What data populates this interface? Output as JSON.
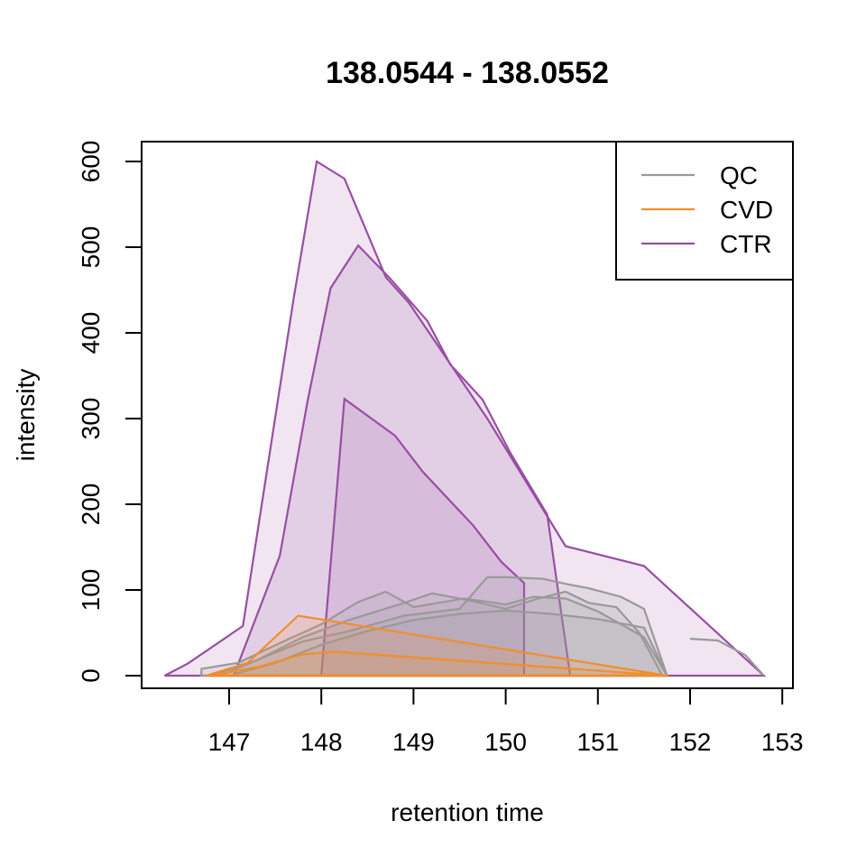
{
  "chart_data": {
    "type": "area",
    "title": "138.0544 - 138.0552",
    "xlabel": "retention time",
    "ylabel": "intensity",
    "xlim": [
      146.3,
      152.9
    ],
    "ylim": [
      0,
      600
    ],
    "x_ticks": [
      147,
      148,
      149,
      150,
      151,
      152,
      153
    ],
    "y_ticks": [
      0,
      100,
      200,
      300,
      400,
      500,
      600
    ],
    "legend": {
      "position": "top-right",
      "entries": [
        {
          "label": "QC",
          "color": "#999999"
        },
        {
          "label": "CVD",
          "color": "#F28E2B"
        },
        {
          "label": "CTR",
          "color": "#984EA3"
        }
      ]
    },
    "series": [
      {
        "name": "CTR",
        "color": "#984EA3",
        "points": [
          [
            146.3,
            0
          ],
          [
            146.55,
            14
          ],
          [
            147.15,
            58
          ],
          [
            147.7,
            440
          ],
          [
            147.95,
            600
          ],
          [
            148.25,
            580
          ],
          [
            148.7,
            465
          ],
          [
            148.95,
            435
          ],
          [
            149.8,
            300
          ],
          [
            150.65,
            151
          ],
          [
            151.5,
            128
          ],
          [
            152.8,
            0
          ]
        ]
      },
      {
        "name": "CTR",
        "color": "#984EA3",
        "points": [
          [
            147.05,
            0
          ],
          [
            147.55,
            140
          ],
          [
            147.85,
            320
          ],
          [
            148.1,
            452
          ],
          [
            148.4,
            502
          ],
          [
            148.75,
            463
          ],
          [
            149.15,
            414
          ],
          [
            149.4,
            363
          ],
          [
            149.75,
            322
          ],
          [
            150.05,
            260
          ],
          [
            150.45,
            188
          ],
          [
            150.7,
            0
          ]
        ]
      },
      {
        "name": "CTR",
        "color": "#984EA3",
        "points": [
          [
            148.0,
            0
          ],
          [
            148.25,
            323
          ],
          [
            148.8,
            280
          ],
          [
            149.1,
            238
          ],
          [
            149.65,
            175
          ],
          [
            149.95,
            133
          ],
          [
            150.2,
            108
          ],
          [
            150.2,
            0
          ]
        ]
      },
      {
        "name": "QC",
        "color": "#999999",
        "points": [
          [
            146.7,
            8
          ],
          [
            147.1,
            15
          ],
          [
            147.55,
            38
          ],
          [
            148.0,
            60
          ],
          [
            148.4,
            86
          ],
          [
            148.7,
            98
          ],
          [
            149.0,
            80
          ],
          [
            149.55,
            90
          ],
          [
            150.0,
            83
          ],
          [
            150.3,
            92
          ],
          [
            150.65,
            90
          ],
          [
            151.0,
            75
          ],
          [
            151.5,
            45
          ],
          [
            151.75,
            0
          ],
          [
            146.7,
            0
          ]
        ]
      },
      {
        "name": "QC",
        "color": "#999999",
        "points": [
          [
            146.8,
            0
          ],
          [
            147.3,
            18
          ],
          [
            147.8,
            40
          ],
          [
            148.3,
            52
          ],
          [
            148.9,
            70
          ],
          [
            149.5,
            78
          ],
          [
            149.8,
            115
          ],
          [
            150.0,
            115
          ],
          [
            150.4,
            113
          ],
          [
            150.7,
            106
          ],
          [
            150.9,
            102
          ],
          [
            151.25,
            92
          ],
          [
            151.5,
            78
          ],
          [
            151.75,
            0
          ]
        ]
      },
      {
        "name": "QC",
        "color": "#999999",
        "points": [
          [
            146.9,
            0
          ],
          [
            147.3,
            18
          ],
          [
            147.8,
            45
          ],
          [
            148.3,
            65
          ],
          [
            148.9,
            85
          ],
          [
            149.2,
            96
          ],
          [
            149.6,
            88
          ],
          [
            150.0,
            78
          ],
          [
            150.35,
            90
          ],
          [
            150.65,
            98
          ],
          [
            150.9,
            85
          ],
          [
            151.2,
            80
          ],
          [
            151.45,
            50
          ],
          [
            151.7,
            0
          ]
        ]
      },
      {
        "name": "QC",
        "color": "#999999",
        "points": [
          [
            147.0,
            0
          ],
          [
            147.5,
            15
          ],
          [
            148.0,
            36
          ],
          [
            148.5,
            52
          ],
          [
            149.0,
            65
          ],
          [
            149.5,
            72
          ],
          [
            150.0,
            76
          ],
          [
            150.5,
            72
          ],
          [
            151.0,
            66
          ],
          [
            151.5,
            56
          ],
          [
            151.75,
            0
          ]
        ]
      },
      {
        "name": "QC",
        "color": "#999999",
        "points": [
          [
            152.0,
            43
          ],
          [
            152.3,
            41
          ],
          [
            152.6,
            24
          ],
          [
            152.8,
            0
          ]
        ],
        "open": true
      },
      {
        "name": "CVD",
        "color": "#F28E2B",
        "points": [
          [
            146.75,
            0
          ],
          [
            147.2,
            15
          ],
          [
            147.75,
            70
          ],
          [
            151.75,
            0
          ]
        ]
      },
      {
        "name": "CVD",
        "color": "#F28E2B",
        "points": [
          [
            146.8,
            0
          ],
          [
            147.3,
            10
          ],
          [
            147.8,
            25
          ],
          [
            148.15,
            28
          ],
          [
            151.75,
            0
          ]
        ]
      }
    ]
  }
}
